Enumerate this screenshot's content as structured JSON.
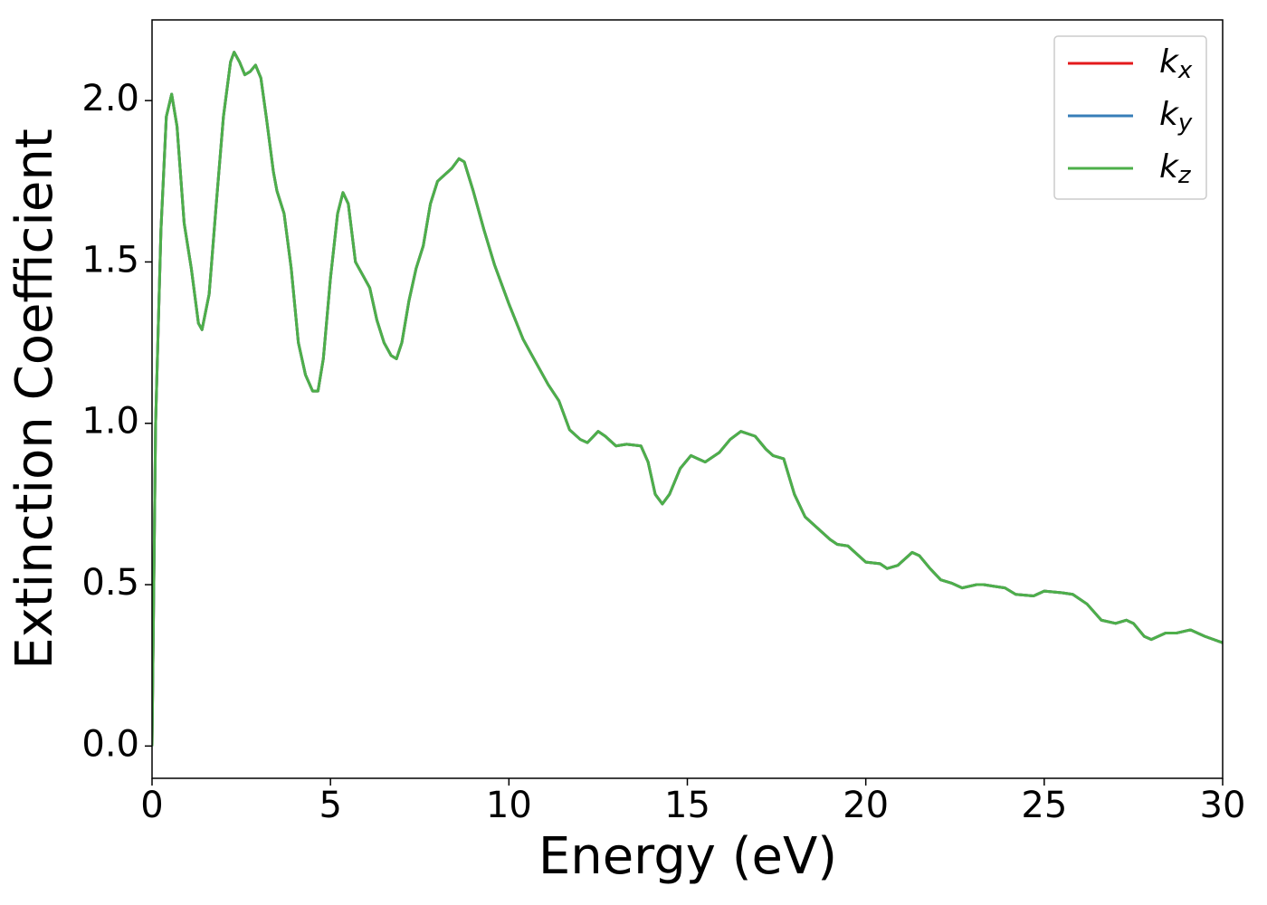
{
  "chart_data": {
    "type": "line",
    "xlabel": "Energy (eV)",
    "ylabel": "Extinction Coefficient",
    "x": [
      0,
      0.1,
      0.25,
      0.4,
      0.55,
      0.7,
      0.9,
      1.1,
      1.3,
      1.4,
      1.6,
      1.8,
      2.0,
      2.2,
      2.3,
      2.45,
      2.6,
      2.75,
      2.9,
      3.05,
      3.2,
      3.4,
      3.5,
      3.7,
      3.9,
      4.1,
      4.3,
      4.5,
      4.65,
      4.8,
      5.0,
      5.2,
      5.35,
      5.5,
      5.7,
      5.9,
      6.1,
      6.3,
      6.5,
      6.7,
      6.85,
      7.0,
      7.2,
      7.4,
      7.6,
      7.8,
      8.0,
      8.2,
      8.4,
      8.6,
      8.75,
      9.0,
      9.3,
      9.6,
      10.0,
      10.4,
      10.8,
      11.1,
      11.4,
      11.7,
      12.0,
      12.2,
      12.5,
      12.7,
      13.0,
      13.3,
      13.7,
      13.9,
      14.1,
      14.3,
      14.5,
      14.8,
      15.1,
      15.3,
      15.5,
      15.9,
      16.2,
      16.5,
      16.9,
      17.2,
      17.4,
      17.7,
      18.0,
      18.3,
      18.6,
      19.0,
      19.2,
      19.5,
      19.8,
      20.0,
      20.4,
      20.6,
      20.9,
      21.1,
      21.3,
      21.5,
      21.8,
      22.1,
      22.4,
      22.7,
      23.1,
      23.3,
      23.6,
      23.9,
      24.2,
      24.7,
      25.0,
      25.5,
      25.8,
      26.2,
      26.6,
      27.0,
      27.3,
      27.5,
      27.8,
      28.0,
      28.4,
      28.7,
      29.1,
      29.5,
      30.0
    ],
    "series": [
      {
        "name": "kx",
        "color": "#e41a1c",
        "values": [
          0,
          1.0,
          1.6,
          1.95,
          2.02,
          1.92,
          1.62,
          1.48,
          1.31,
          1.29,
          1.4,
          1.68,
          1.95,
          2.12,
          2.15,
          2.12,
          2.08,
          2.09,
          2.11,
          2.07,
          1.95,
          1.78,
          1.72,
          1.65,
          1.48,
          1.25,
          1.15,
          1.1,
          1.1,
          1.2,
          1.45,
          1.65,
          1.715,
          1.68,
          1.5,
          1.46,
          1.42,
          1.32,
          1.25,
          1.21,
          1.2,
          1.25,
          1.38,
          1.48,
          1.55,
          1.68,
          1.75,
          1.77,
          1.79,
          1.82,
          1.81,
          1.72,
          1.6,
          1.49,
          1.37,
          1.26,
          1.18,
          1.12,
          1.07,
          0.98,
          0.95,
          0.94,
          0.975,
          0.96,
          0.93,
          0.935,
          0.93,
          0.88,
          0.78,
          0.75,
          0.78,
          0.86,
          0.9,
          0.89,
          0.88,
          0.91,
          0.95,
          0.975,
          0.96,
          0.92,
          0.9,
          0.89,
          0.78,
          0.71,
          0.68,
          0.64,
          0.625,
          0.62,
          0.59,
          0.57,
          0.565,
          0.55,
          0.56,
          0.58,
          0.6,
          0.59,
          0.55,
          0.515,
          0.505,
          0.49,
          0.5,
          0.5,
          0.495,
          0.49,
          0.47,
          0.465,
          0.48,
          0.475,
          0.47,
          0.44,
          0.39,
          0.38,
          0.39,
          0.38,
          0.34,
          0.33,
          0.35,
          0.35,
          0.36,
          0.34,
          0.32
        ]
      },
      {
        "name": "ky",
        "color": "#377eb8",
        "values": [
          0,
          1.0,
          1.6,
          1.95,
          2.02,
          1.92,
          1.62,
          1.48,
          1.31,
          1.29,
          1.4,
          1.68,
          1.95,
          2.12,
          2.15,
          2.12,
          2.08,
          2.09,
          2.11,
          2.07,
          1.95,
          1.78,
          1.72,
          1.65,
          1.48,
          1.25,
          1.15,
          1.1,
          1.1,
          1.2,
          1.45,
          1.65,
          1.715,
          1.68,
          1.5,
          1.46,
          1.42,
          1.32,
          1.25,
          1.21,
          1.2,
          1.25,
          1.38,
          1.48,
          1.55,
          1.68,
          1.75,
          1.77,
          1.79,
          1.82,
          1.81,
          1.72,
          1.6,
          1.49,
          1.37,
          1.26,
          1.18,
          1.12,
          1.07,
          0.98,
          0.95,
          0.94,
          0.975,
          0.96,
          0.93,
          0.935,
          0.93,
          0.88,
          0.78,
          0.75,
          0.78,
          0.86,
          0.9,
          0.89,
          0.88,
          0.91,
          0.95,
          0.975,
          0.96,
          0.92,
          0.9,
          0.89,
          0.78,
          0.71,
          0.68,
          0.64,
          0.625,
          0.62,
          0.59,
          0.57,
          0.565,
          0.55,
          0.56,
          0.58,
          0.6,
          0.59,
          0.55,
          0.515,
          0.505,
          0.49,
          0.5,
          0.5,
          0.495,
          0.49,
          0.47,
          0.465,
          0.48,
          0.475,
          0.47,
          0.44,
          0.39,
          0.38,
          0.39,
          0.38,
          0.34,
          0.33,
          0.35,
          0.35,
          0.36,
          0.34,
          0.32
        ]
      },
      {
        "name": "kz",
        "color": "#4daf4a",
        "values": [
          0,
          1.0,
          1.6,
          1.95,
          2.02,
          1.92,
          1.62,
          1.48,
          1.31,
          1.29,
          1.4,
          1.68,
          1.95,
          2.12,
          2.15,
          2.12,
          2.08,
          2.09,
          2.11,
          2.07,
          1.95,
          1.78,
          1.72,
          1.65,
          1.48,
          1.25,
          1.15,
          1.1,
          1.1,
          1.2,
          1.45,
          1.65,
          1.715,
          1.68,
          1.5,
          1.46,
          1.42,
          1.32,
          1.25,
          1.21,
          1.2,
          1.25,
          1.38,
          1.48,
          1.55,
          1.68,
          1.75,
          1.77,
          1.79,
          1.82,
          1.81,
          1.72,
          1.6,
          1.49,
          1.37,
          1.26,
          1.18,
          1.12,
          1.07,
          0.98,
          0.95,
          0.94,
          0.975,
          0.96,
          0.93,
          0.935,
          0.93,
          0.88,
          0.78,
          0.75,
          0.78,
          0.86,
          0.9,
          0.89,
          0.88,
          0.91,
          0.95,
          0.975,
          0.96,
          0.92,
          0.9,
          0.89,
          0.78,
          0.71,
          0.68,
          0.64,
          0.625,
          0.62,
          0.59,
          0.57,
          0.565,
          0.55,
          0.56,
          0.58,
          0.6,
          0.59,
          0.55,
          0.515,
          0.505,
          0.49,
          0.5,
          0.5,
          0.495,
          0.49,
          0.47,
          0.465,
          0.48,
          0.475,
          0.47,
          0.44,
          0.39,
          0.38,
          0.39,
          0.38,
          0.34,
          0.33,
          0.35,
          0.35,
          0.36,
          0.34,
          0.32
        ]
      }
    ],
    "xlim": [
      0,
      30
    ],
    "xticks": [
      0,
      5,
      10,
      15,
      20,
      25,
      30
    ],
    "ylim": [
      -0.1,
      2.25
    ],
    "yticks": [
      {
        "value": 0,
        "label": "0.0"
      },
      0.5,
      {
        "value": 1,
        "label": "1.0"
      },
      1.5,
      {
        "value": 2,
        "label": "2.0"
      }
    ],
    "grid": false,
    "legend": "upper right"
  }
}
